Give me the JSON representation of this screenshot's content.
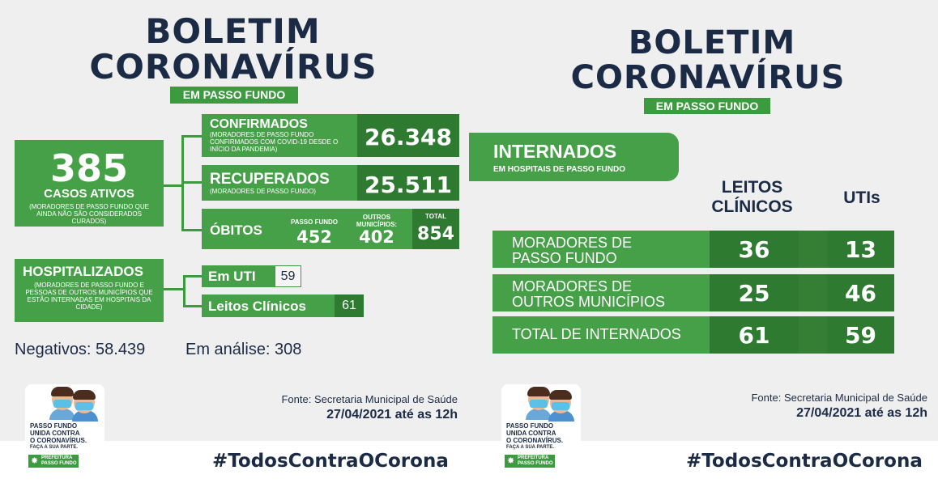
{
  "left": {
    "title_line1": "BOLETIM",
    "title_line2": "CORONAVÍRUS",
    "subtitle": "EM PASSO FUNDO",
    "active_cases": {
      "value": "385",
      "label": "CASOS ATIVOS",
      "note": "(MORADORES DE PASSO FUNDO QUE AINDA NÃO SÃO CONSIDERADOS CURADOS)"
    },
    "confirmed": {
      "label": "CONFIRMADOS",
      "note": "(MORADORES DE PASSO FUNDO CONFIRMADOS COM COVID-19 DESDE O INÍCIO DA PANDEMIA)",
      "value": "26.348"
    },
    "recovered": {
      "label": "RECUPERADOS",
      "note": "(MORADORES DE PASSO FUNDO)",
      "value": "25.511"
    },
    "deaths": {
      "label": "ÓBITOS",
      "pf_label": "PASSO FUNDO",
      "pf_value": "452",
      "other_label": "OUTROS MUNICÍPIOS:",
      "other_value": "402",
      "total_label": "TOTAL",
      "total_value": "854"
    },
    "hospitalized": {
      "label": "HOSPITALIZADOS",
      "note": "(MORADORES DE PASSO FUNDO E PESSOAS DE OUTROS MUNICÍPIOS QUE ESTÃO INTERNADAS EM HOSPITAIS DA CIDADE)",
      "uti_label": "Em UTI",
      "uti_value": "59",
      "clinic_label": "Leitos Clínicos",
      "clinic_value": "61"
    },
    "negatives": "Negativos: 58.439",
    "in_analysis": "Em análise: 308",
    "source": "Fonte: Secretaria Municipal de Saúde",
    "date": "27/04/2021 até as 12h",
    "hashtag": "#TodosContraOCorona"
  },
  "right": {
    "title_line1": "BOLETIM",
    "title_line2": "CORONAVÍRUS",
    "subtitle": "EM PASSO FUNDO",
    "hospitalized_title": "INTERNADOS",
    "hospitalized_sub": "EM HOSPITAIS DE PASSO FUNDO",
    "col_clinic_line1": "LEITOS",
    "col_clinic_line2": "CLÍNICOS",
    "col_uti": "UTIs",
    "rows": [
      {
        "line1": "MORADORES DE",
        "line2": "PASSO FUNDO",
        "clinic": "36",
        "uti": "13"
      },
      {
        "line1": "MORADORES DE",
        "line2": "OUTROS MUNICÍPIOS",
        "clinic": "25",
        "uti": "46"
      },
      {
        "line1": "TOTAL DE INTERNADOS",
        "line2": "",
        "clinic": "61",
        "uti": "59"
      }
    ],
    "source": "Fonte: Secretaria Municipal de Saúde",
    "date": "27/04/2021 até as 12h",
    "hashtag": "#TodosContraOCorona"
  },
  "logo": {
    "line1": "PASSO FUNDO",
    "line2": "UNIDA CONTRA",
    "line3": "O CORONAVÍRUS.",
    "tagline": "FAÇA A SUA PARTE.",
    "badge_line1": "PREFEITURA",
    "badge_line2": "PASSO FUNDO"
  },
  "colors": {
    "green": "#46a048",
    "dark_green": "#2e7a31",
    "navy": "#1c2b45",
    "background": "#efefef"
  }
}
